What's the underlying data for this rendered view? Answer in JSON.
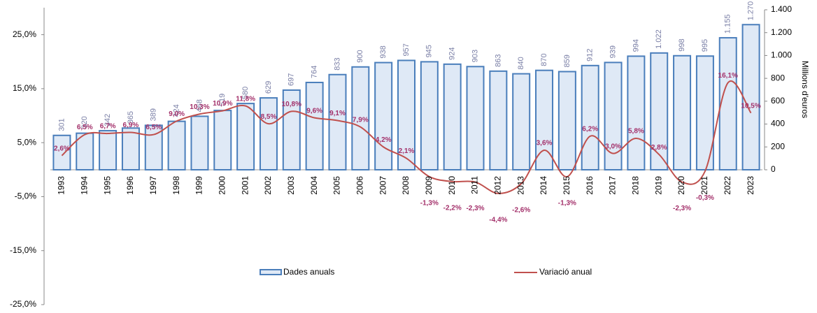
{
  "chart_data": {
    "type": "bar-line",
    "categories": [
      "1993",
      "1994",
      "1995",
      "1996",
      "1997",
      "1998",
      "1999",
      "2000",
      "2001",
      "2002",
      "2003",
      "2004",
      "2005",
      "2006",
      "2007",
      "2008",
      "2009",
      "2010",
      "2011",
      "2012",
      "2013",
      "2014",
      "2015",
      "2016",
      "2017",
      "2018",
      "2019",
      "2020",
      "2021",
      "2022",
      "2023"
    ],
    "series": [
      {
        "name": "Dades anuals",
        "type": "bar",
        "axis": "y2",
        "color": "#4a7ebb",
        "fill": "#dfe9f6",
        "values": [
          301,
          320,
          342,
          365,
          389,
          424,
          468,
          519,
          580,
          629,
          697,
          764,
          833,
          900,
          938,
          957,
          945,
          924,
          903,
          863,
          840,
          870,
          859,
          912,
          939,
          994,
          1022,
          998,
          995,
          1155,
          1270
        ],
        "value_labels": [
          "301",
          "320",
          "342",
          "365",
          "389",
          "424",
          "468",
          "519",
          "580",
          "629",
          "697",
          "764",
          "833",
          "900",
          "938",
          "957",
          "945",
          "924",
          "903",
          "863",
          "840",
          "870",
          "859",
          "912",
          "939",
          "994",
          "1.022",
          "998",
          "995",
          "1.155",
          "1.270"
        ]
      },
      {
        "name": "Variació anual",
        "type": "line",
        "axis": "y",
        "color": "#c0504d",
        "values": [
          2.6,
          6.5,
          6.7,
          6.9,
          6.5,
          9.0,
          10.3,
          10.9,
          11.8,
          8.5,
          10.8,
          9.6,
          9.1,
          7.9,
          4.2,
          2.1,
          -1.3,
          -2.2,
          -2.3,
          -4.4,
          -2.6,
          3.6,
          -1.3,
          6.2,
          3.0,
          5.8,
          2.8,
          -2.3,
          -0.3,
          16.1,
          10.5
        ],
        "value_labels": [
          "2,6%",
          "6,5%",
          "6,7%",
          "6,9%",
          "6,5%",
          "9,0%",
          "10,3%",
          "10,9%",
          "11,8%",
          "8,5%",
          "10,8%",
          "9,6%",
          "9,1%",
          "7,9%",
          "4,2%",
          "2,1%",
          "-1,3%",
          "-2,2%",
          "-2,3%",
          "-4,4%",
          "-2,6%",
          "3,6%",
          "-1,3%",
          "6,2%",
          "3,0%",
          "5,8%",
          "2,8%",
          "-2,3%",
          "-0,3%",
          "16,1%",
          "10,5%"
        ]
      }
    ],
    "ylim": [
      -25,
      30
    ],
    "yticks": [
      {
        "value": 25,
        "label": "25,0%"
      },
      {
        "value": 15,
        "label": "15,0%"
      },
      {
        "value": 5,
        "label": "5,0%"
      },
      {
        "value": -5,
        "label": "-5,0%"
      },
      {
        "value": -15,
        "label": "-15,0%"
      },
      {
        "value": -25,
        "label": "-25,0%"
      }
    ],
    "y2lim": [
      0,
      1400
    ],
    "y2ticks": [
      0,
      200,
      400,
      600,
      800,
      {
        "value": 1000,
        "label": "1.000"
      },
      {
        "value": 1200,
        "label": "1.200"
      },
      {
        "value": 1400,
        "label": "1.400"
      }
    ],
    "y2label": "Millions d'euros",
    "legend": "bottom"
  }
}
